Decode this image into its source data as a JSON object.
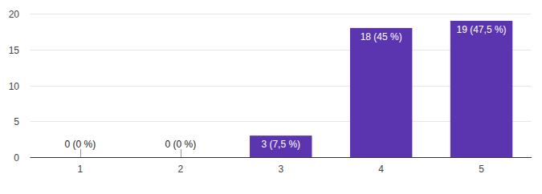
{
  "chart_data": {
    "type": "bar",
    "categories": [
      "1",
      "2",
      "3",
      "4",
      "5"
    ],
    "values": [
      0,
      0,
      3,
      18,
      19
    ],
    "value_labels": [
      "0 (0 %)",
      "0 (0 %)",
      "3 (7,5 %)",
      "18 (45 %)",
      "19 (47,5 %)"
    ],
    "color": "#5b35b0",
    "ylim": [
      0,
      20
    ],
    "yticks": [
      0,
      5,
      10,
      15,
      20
    ],
    "grid": true,
    "data_labels": true
  }
}
